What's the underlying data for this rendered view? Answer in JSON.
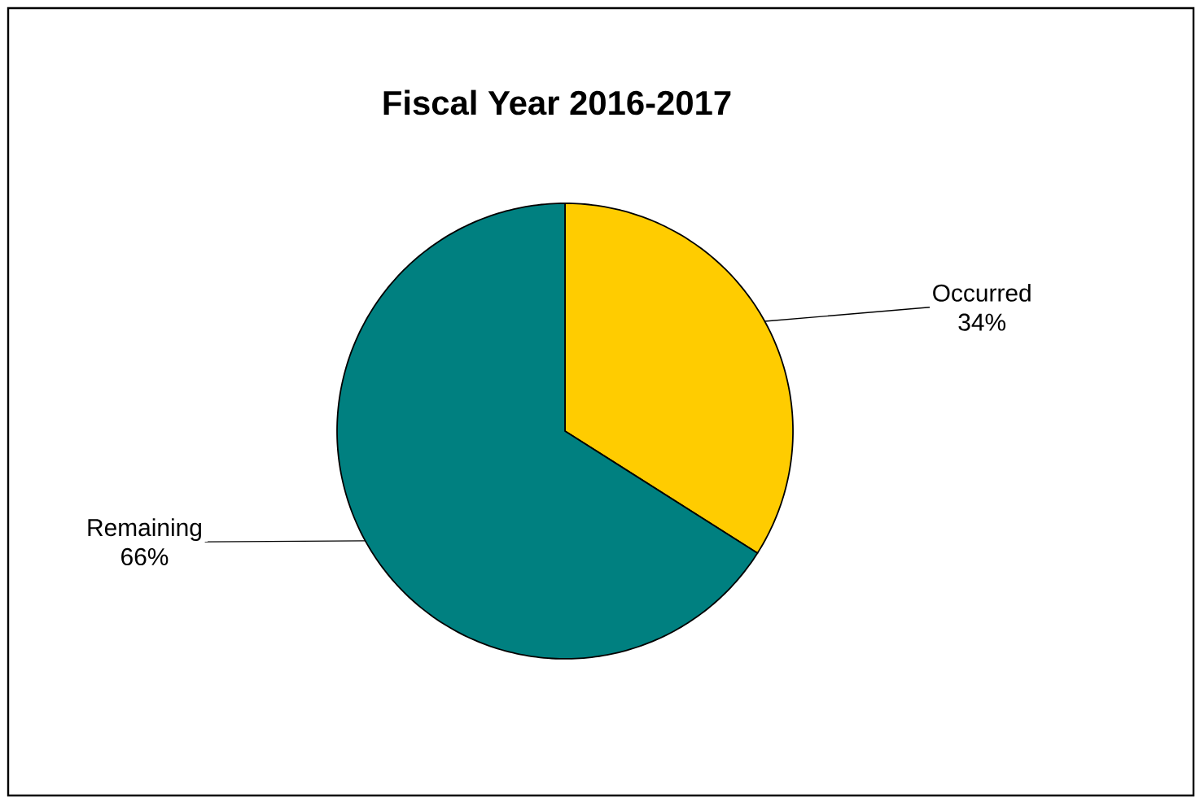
{
  "chart_data": {
    "type": "pie",
    "title": "Fiscal Year 2016-2017",
    "categories": [
      "Occurred",
      "Remaining"
    ],
    "values": [
      34,
      66
    ],
    "colors": [
      "#ffcc00",
      "#008080"
    ],
    "value_labels": [
      "34%",
      "66%"
    ]
  }
}
